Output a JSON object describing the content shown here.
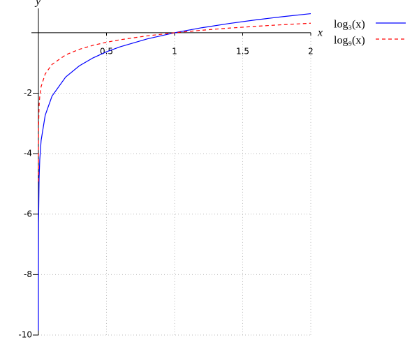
{
  "chart_data": {
    "type": "line",
    "x_label": "x",
    "y_label": "y",
    "x": [
      2e-05,
      0.0001,
      0.001,
      0.005,
      0.01,
      0.02,
      0.05,
      0.1,
      0.2,
      0.3,
      0.4,
      0.5,
      0.6,
      0.8,
      1,
      1.2,
      1.4,
      1.6,
      1.8,
      2
    ],
    "series": [
      {
        "name": "log₃(x)",
        "color": "#0000ff",
        "dash": false,
        "values": [
          -9.849,
          -8.384,
          -6.288,
          -4.823,
          -4.192,
          -3.561,
          -2.727,
          -2.096,
          -1.465,
          -1.096,
          -0.834,
          -0.631,
          -0.465,
          -0.203,
          0,
          0.166,
          0.306,
          0.428,
          0.535,
          0.631
        ]
      },
      {
        "name": "log₉(x)",
        "color": "#ff0000",
        "dash": true,
        "values": [
          -4.924,
          -4.192,
          -3.144,
          -2.411,
          -2.096,
          -1.78,
          -1.363,
          -1.048,
          -0.732,
          -0.548,
          -0.417,
          -0.315,
          -0.232,
          -0.102,
          0,
          0.083,
          0.153,
          0.214,
          0.268,
          0.315
        ]
      }
    ],
    "xlim": [
      0,
      2
    ],
    "ylim": [
      -10,
      1
    ],
    "xticks": [
      0.5,
      1,
      1.5,
      2
    ],
    "yticks": [
      -2,
      -4,
      -6,
      -8,
      -10
    ],
    "grid": true
  }
}
